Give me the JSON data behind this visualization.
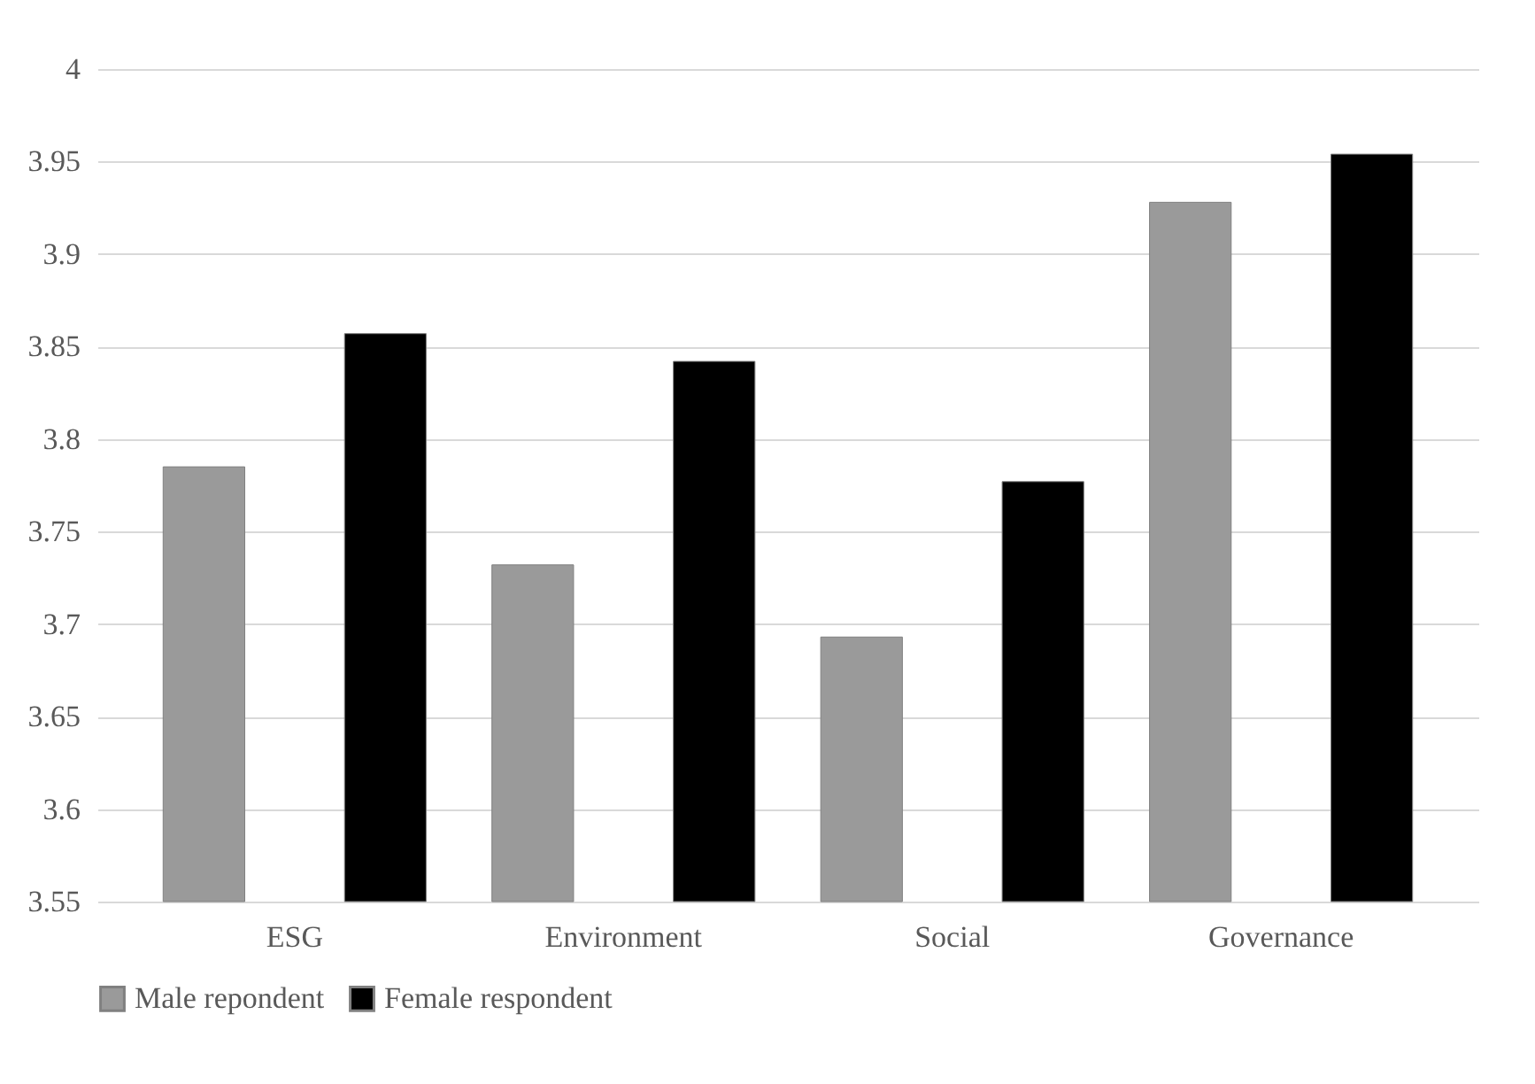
{
  "chart_data": {
    "type": "bar",
    "categories": [
      "ESG",
      "Environment",
      "Social",
      "Governance"
    ],
    "series": [
      {
        "name": "Male repondent",
        "color": "#9a9a9a",
        "values": [
          3.785,
          3.732,
          3.693,
          3.928
        ]
      },
      {
        "name": "Female respondent",
        "color": "#000000",
        "values": [
          3.857,
          3.842,
          3.777,
          3.954
        ]
      }
    ],
    "ylim": [
      3.55,
      4
    ],
    "yticks": [
      3.55,
      3.6,
      3.65,
      3.7,
      3.75,
      3.8,
      3.85,
      3.9,
      3.95,
      4
    ],
    "grid": "y",
    "legend": "bottom"
  }
}
